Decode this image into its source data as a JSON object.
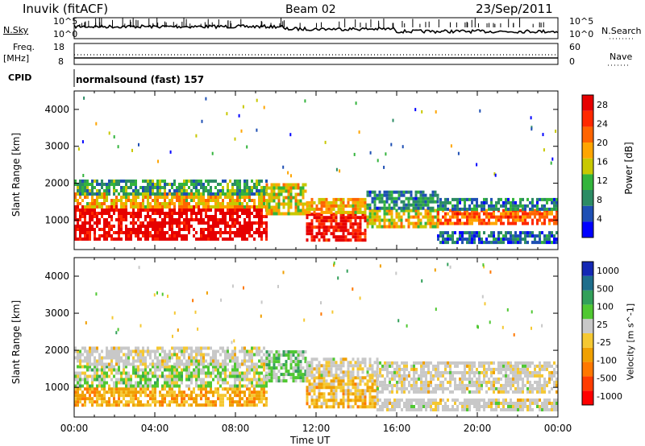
{
  "header": {
    "station": "Inuvik (fitACF)",
    "beam": "Beam 02",
    "date": "23/Sep/2011"
  },
  "left_labels": {
    "nsky": "N.Sky",
    "freq": "Freq.",
    "mhz": "[MHz]",
    "cpid": "CPID"
  },
  "right_labels": {
    "nsearch": "N.Search",
    "nave": "Nave"
  },
  "strip_ticks": {
    "noise_top": "10^5",
    "noise_bottom": "10^0",
    "freq_top": "18",
    "freq_bottom": "8",
    "nave_top": "60",
    "nave_bottom": "0"
  },
  "cpid_text": "normalsound (fast) 157",
  "colors": {
    "power_scale": [
      "#0000ff",
      "#1e4fb4",
      "#2c8c64",
      "#33b43c",
      "#c8c800",
      "#ffa500",
      "#ff6400",
      "#ff2800",
      "#e60000"
    ],
    "velocity_scale": [
      "#ff0000",
      "#ff3c00",
      "#ff7800",
      "#f0a000",
      "#f5c832",
      "#c8c8c8",
      "#50c832",
      "#32a05a",
      "#1e6e8c",
      "#1428b4"
    ],
    "ground_scatter": "#c8c8c8"
  },
  "chart_data": [
    {
      "type": "heatmap",
      "name": "power",
      "ylabel": "Slant Range [km]",
      "yticks": [
        "1000",
        "2000",
        "3000",
        "4000"
      ],
      "ylim": [
        200,
        4500
      ],
      "colorbar_label": "Power [dB]",
      "colorbar_ticks": [
        "4",
        "8",
        "12",
        "16",
        "20",
        "24",
        "28"
      ],
      "clim": [
        0,
        30
      ],
      "x_range_hours": [
        0,
        24
      ],
      "bands": [
        {
          "t": [
            0,
            9.5
          ],
          "r": [
            500,
            1400
          ],
          "v": 30
        },
        {
          "t": [
            0,
            9.5
          ],
          "r": [
            1400,
            1750
          ],
          "v": 18
        },
        {
          "t": [
            0,
            9.5
          ],
          "r": [
            1750,
            2100
          ],
          "v": 10
        },
        {
          "t": [
            9.5,
            11.5
          ],
          "r": [
            1200,
            2000
          ],
          "v": 16
        },
        {
          "t": [
            11.5,
            14.5
          ],
          "r": [
            500,
            1200
          ],
          "v": 28
        },
        {
          "t": [
            11.5,
            14.5
          ],
          "r": [
            1200,
            1600
          ],
          "v": 18
        },
        {
          "t": [
            14.5,
            18
          ],
          "r": [
            800,
            1300
          ],
          "v": 16
        },
        {
          "t": [
            14.5,
            18
          ],
          "r": [
            1300,
            1800
          ],
          "v": 8
        },
        {
          "t": [
            18,
            24
          ],
          "r": [
            900,
            1300
          ],
          "v": 22
        },
        {
          "t": [
            18,
            24
          ],
          "r": [
            1300,
            1600
          ],
          "v": 8
        },
        {
          "t": [
            18,
            24
          ],
          "r": [
            400,
            700
          ],
          "v": 6
        }
      ]
    },
    {
      "type": "heatmap",
      "name": "velocity",
      "ylabel": "Slant Range [km]",
      "yticks": [
        "1000",
        "2000",
        "3000",
        "4000"
      ],
      "ylim": [
        200,
        4500
      ],
      "colorbar_label": "Velocity [m s^-1]",
      "colorbar_ticks": [
        "1000",
        "500",
        "100",
        "25",
        "-25",
        "-100",
        "-500",
        "-1000"
      ],
      "clim": [
        -1200,
        1200
      ],
      "x_range_hours": [
        0,
        24
      ],
      "xticks": [
        "00:00",
        "04:00",
        "08:00",
        "12:00",
        "16:00",
        "20:00",
        "00:00"
      ],
      "xlabel": "Time UT",
      "bands": [
        {
          "t": [
            0,
            9.5
          ],
          "r": [
            500,
            1000
          ],
          "v": -300
        },
        {
          "t": [
            0,
            9.5
          ],
          "r": [
            1000,
            1600
          ],
          "v": 200
        },
        {
          "t": [
            0,
            9.5
          ],
          "r": [
            1600,
            2100
          ],
          "v": 0
        },
        {
          "t": [
            9.5,
            11.5
          ],
          "r": [
            1200,
            2000
          ],
          "v": 300
        },
        {
          "t": [
            11.5,
            15
          ],
          "r": [
            500,
            1300
          ],
          "v": -200
        },
        {
          "t": [
            11.5,
            15
          ],
          "r": [
            1300,
            1800
          ],
          "v": 0
        },
        {
          "t": [
            15,
            24
          ],
          "r": [
            900,
            1700
          ],
          "v": 0
        },
        {
          "t": [
            15,
            24
          ],
          "r": [
            400,
            700
          ],
          "v": 0
        }
      ]
    }
  ]
}
